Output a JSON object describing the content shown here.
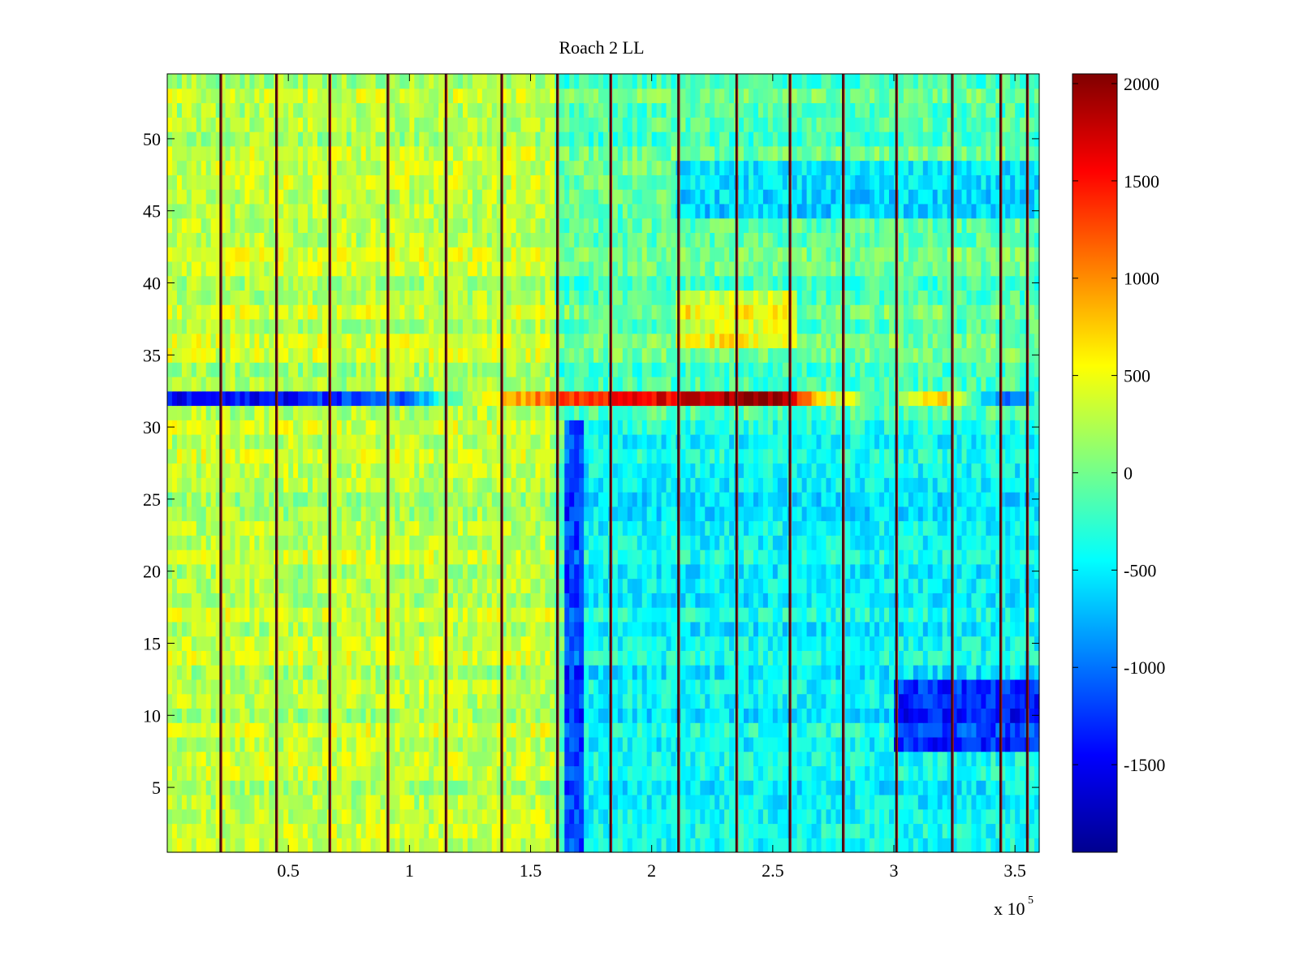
{
  "chart_data": {
    "type": "heatmap",
    "title": "Roach 2 LL",
    "xlabel": "",
    "ylabel": "",
    "x_exponent_label": "x 10",
    "x_exponent": "5",
    "xlim": [
      0,
      3.6
    ],
    "ylim": [
      0.5,
      54.5
    ],
    "x_ticks": [
      0.5,
      1,
      1.5,
      2,
      2.5,
      3,
      3.5
    ],
    "x_tick_labels": [
      "0.5",
      "1",
      "1.5",
      "2",
      "2.5",
      "3",
      "3.5"
    ],
    "y_ticks": [
      5,
      10,
      15,
      20,
      25,
      30,
      35,
      40,
      45,
      50
    ],
    "y_tick_labels": [
      "5",
      "10",
      "15",
      "20",
      "25",
      "30",
      "35",
      "40",
      "45",
      "50"
    ],
    "colorbar": {
      "colormap": "jet",
      "clim": [
        -1950,
        2050
      ],
      "ticks": [
        2000,
        1500,
        1000,
        500,
        0,
        -500,
        -1000,
        -1500
      ],
      "tick_labels": [
        "2000",
        "1500",
        "1000",
        "500",
        "0",
        "-500",
        "-1000",
        "-1500"
      ]
    },
    "grid": false,
    "rows": 54,
    "vertical_stripes_x": [
      0.22,
      0.45,
      0.67,
      0.91,
      1.15,
      1.38,
      1.61,
      1.83,
      2.11,
      2.35,
      2.57,
      2.79,
      3.01,
      3.24,
      3.44,
      3.55
    ],
    "regions": [
      {
        "name": "row-32-band",
        "x_range": [
          0,
          3.6
        ],
        "rows": [
          32,
          32
        ],
        "value_profile": [
          [
            0,
            -1500
          ],
          [
            0.5,
            -1400
          ],
          [
            1.0,
            -1000
          ],
          [
            1.3,
            600
          ],
          [
            1.6,
            1200
          ],
          [
            1.85,
            1500
          ],
          [
            2.2,
            1700
          ],
          [
            2.4,
            2000
          ],
          [
            2.55,
            1800
          ],
          [
            2.7,
            600
          ],
          [
            3.0,
            -200
          ],
          [
            3.2,
            900
          ],
          [
            3.45,
            -1200
          ],
          [
            3.6,
            -300
          ]
        ]
      },
      {
        "name": "left-warm-region",
        "x_range": [
          0,
          1.6
        ],
        "rows": [
          1,
          54
        ],
        "mean": 280
      },
      {
        "name": "dip-column",
        "x_range": [
          1.64,
          1.72
        ],
        "rows": [
          1,
          30
        ],
        "mean": -1200
      },
      {
        "name": "right-cool-region",
        "x_range": [
          1.72,
          3.6
        ],
        "rows": [
          1,
          30
        ],
        "mean": -450
      },
      {
        "name": "low-rows-right",
        "x_range": [
          3.0,
          3.6
        ],
        "rows": [
          8,
          12
        ],
        "mean": -1300
      },
      {
        "name": "upper-right-cool",
        "x_range": [
          2.1,
          3.6
        ],
        "rows": [
          45,
          48
        ],
        "mean": -600
      },
      {
        "name": "warm-upper-band",
        "x_range": [
          2.1,
          2.6
        ],
        "rows": [
          36,
          39
        ],
        "mean": 450
      }
    ]
  }
}
